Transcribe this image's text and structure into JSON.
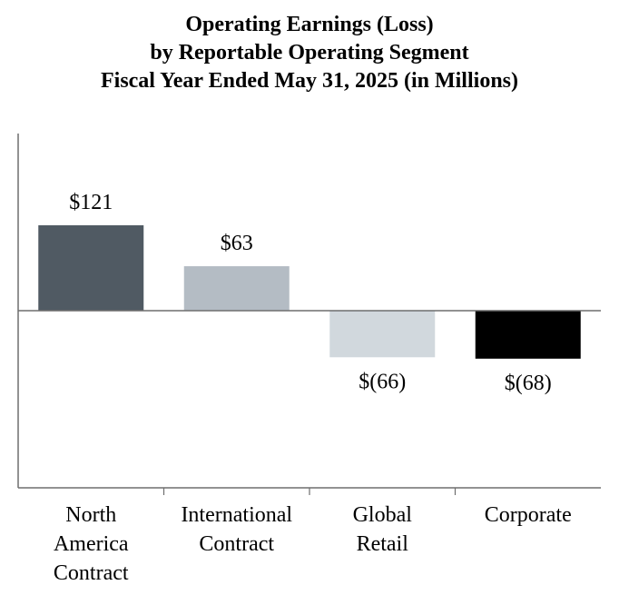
{
  "chart_data": {
    "type": "bar",
    "title_lines": [
      "Operating Earnings (Loss)",
      "by Reportable Operating Segment",
      "Fiscal Year Ended May 31, 2025 (in Millions)"
    ],
    "categories": [
      [
        "North",
        "America",
        "Contract"
      ],
      [
        "International",
        "Contract"
      ],
      [
        "Global",
        "Retail"
      ],
      [
        "Corporate"
      ]
    ],
    "values": [
      121,
      63,
      -66,
      -68
    ],
    "data_labels": [
      "$121",
      "$63",
      "$(66)",
      "$(68)"
    ],
    "colors": [
      "#505a63",
      "#b4bcc4",
      "#d1d8dd",
      "#000000"
    ],
    "axis_color": "#6e6e6e",
    "ylim": [
      -250,
      250
    ],
    "xlabel": "",
    "ylabel": "",
    "grid": false,
    "legend": "none"
  }
}
